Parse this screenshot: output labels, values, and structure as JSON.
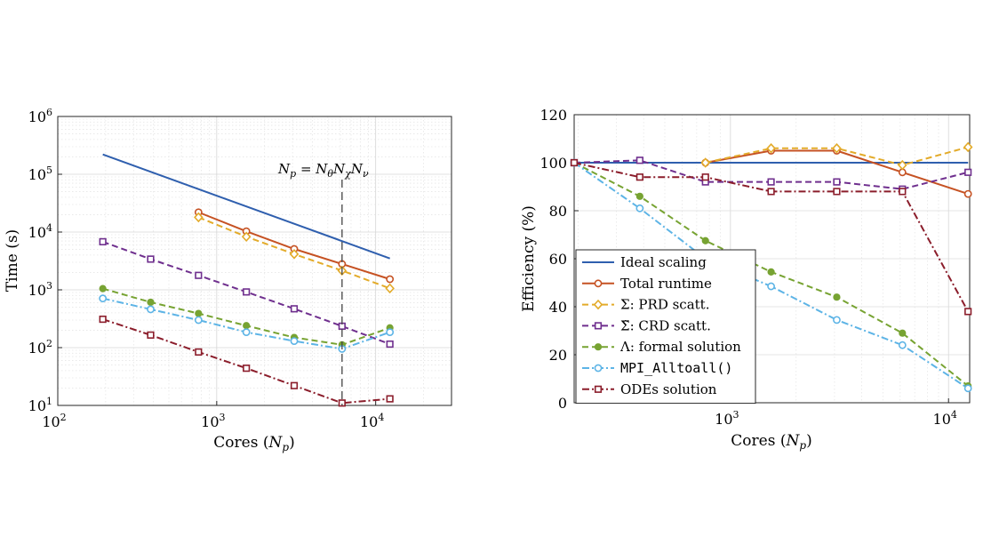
{
  "chart_data": [
    {
      "type": "line",
      "xscale": "log",
      "yscale": "log",
      "xlabel": "Cores (N_p)",
      "ylabel": "Time (s)",
      "xlim": [
        100,
        30000
      ],
      "ylim": [
        10,
        1000000
      ],
      "xticks": [
        "10^2",
        "10^3",
        "10^4"
      ],
      "yticks": [
        "10^1",
        "10^2",
        "10^3",
        "10^4",
        "10^5",
        "10^6"
      ],
      "grid": true,
      "annotation": {
        "text": "N_p = N_θ N_χ N_ν",
        "x": 6144
      },
      "series": [
        {
          "key": "ideal",
          "name": "Ideal scaling",
          "color": "#2f5fae",
          "dash": "",
          "marker": "none",
          "x": [
            192,
            12288
          ],
          "y": [
            220000,
            3500
          ]
        },
        {
          "key": "total",
          "name": "Total runtime",
          "color": "#c65223",
          "dash": "",
          "marker": "circle",
          "x": [
            768,
            1536,
            3072,
            6144,
            12288
          ],
          "y": [
            22000,
            10300,
            5100,
            2800,
            1530
          ]
        },
        {
          "key": "prd",
          "name": "Σ: PRD scatt.",
          "color": "#e3ab2a",
          "dash": "7,4",
          "marker": "diamond",
          "x": [
            768,
            1536,
            3072,
            6144,
            12288
          ],
          "y": [
            18000,
            8300,
            4150,
            2150,
            1060
          ]
        },
        {
          "key": "crd",
          "name": "Σ̃: CRD scatt.",
          "color": "#6f2f8e",
          "dash": "7,4",
          "marker": "square",
          "x": [
            192,
            384,
            768,
            1536,
            3072,
            6144,
            12288
          ],
          "y": [
            6800,
            3400,
            1780,
            920,
            470,
            235,
            115
          ]
        },
        {
          "key": "lambda",
          "name": "Λ: formal solution",
          "color": "#77a332",
          "dash": "7,4",
          "marker": "dot",
          "x": [
            192,
            384,
            768,
            1536,
            3072,
            6144,
            12288
          ],
          "y": [
            1050,
            610,
            390,
            240,
            150,
            112,
            220
          ]
        },
        {
          "key": "mpi",
          "name": "MPI_Alltoall()",
          "color": "#5db4e6",
          "dash": "8,3,2,3",
          "marker": "circle",
          "x": [
            192,
            384,
            768,
            1536,
            3072,
            6144,
            12288
          ],
          "y": [
            710,
            460,
            300,
            185,
            130,
            95,
            185
          ]
        },
        {
          "key": "ode",
          "name": "ODEs solution",
          "color": "#8b1d2b",
          "dash": "8,3,2,3",
          "marker": "square",
          "x": [
            192,
            384,
            768,
            1536,
            3072,
            6144,
            12288
          ],
          "y": [
            310,
            165,
            84,
            44,
            22,
            11,
            13
          ]
        }
      ]
    },
    {
      "type": "line",
      "xscale": "log",
      "yscale": "linear",
      "xlabel": "Cores (N_p)",
      "ylabel": "Efficiency (%)",
      "xlim": [
        192,
        12500
      ],
      "ylim": [
        0,
        120
      ],
      "xticks": [
        "10^3",
        "10^4"
      ],
      "yticks": [
        "0",
        "20",
        "40",
        "60",
        "80",
        "100",
        "120"
      ],
      "grid": true,
      "legend": "lower-left",
      "series": [
        {
          "key": "ideal",
          "name": "Ideal scaling",
          "color": "#2f5fae",
          "dash": "",
          "marker": "none",
          "x": [
            192,
            12288
          ],
          "y": [
            100,
            100
          ]
        },
        {
          "key": "total",
          "name": "Total runtime",
          "color": "#c65223",
          "dash": "",
          "marker": "circle",
          "x": [
            768,
            1536,
            3072,
            6144,
            12288
          ],
          "y": [
            100,
            105,
            105,
            96,
            87
          ]
        },
        {
          "key": "prd",
          "name": "Σ: PRD scatt.",
          "color": "#e3ab2a",
          "dash": "7,4",
          "marker": "diamond",
          "x": [
            768,
            1536,
            3072,
            6144,
            12288
          ],
          "y": [
            100,
            106,
            106,
            99,
            106.5
          ]
        },
        {
          "key": "crd",
          "name": "Σ̃: CRD scatt.",
          "color": "#6f2f8e",
          "dash": "7,4",
          "marker": "square",
          "x": [
            192,
            384,
            768,
            1536,
            3072,
            6144,
            12288
          ],
          "y": [
            100,
            101,
            92,
            92,
            92,
            89,
            96
          ]
        },
        {
          "key": "lambda",
          "name": "Λ: formal solution",
          "color": "#77a332",
          "dash": "7,4",
          "marker": "dot",
          "x": [
            192,
            384,
            768,
            1536,
            3072,
            6144,
            12288
          ],
          "y": [
            100,
            86,
            67.5,
            54.5,
            44,
            29,
            7
          ]
        },
        {
          "key": "mpi",
          "name": "MPI_Alltoall()",
          "color": "#5db4e6",
          "dash": "8,3,2,3",
          "marker": "circle",
          "x": [
            192,
            384,
            768,
            1536,
            3072,
            6144,
            12288
          ],
          "y": [
            100,
            81,
            60,
            48.5,
            34.5,
            24,
            6
          ]
        },
        {
          "key": "ode",
          "name": "ODEs solution",
          "color": "#8b1d2b",
          "dash": "8,3,2,3",
          "marker": "square",
          "x": [
            192,
            384,
            768,
            1536,
            3072,
            6144,
            12288
          ],
          "y": [
            100,
            94,
            94,
            88,
            88,
            88,
            38
          ]
        }
      ]
    }
  ]
}
